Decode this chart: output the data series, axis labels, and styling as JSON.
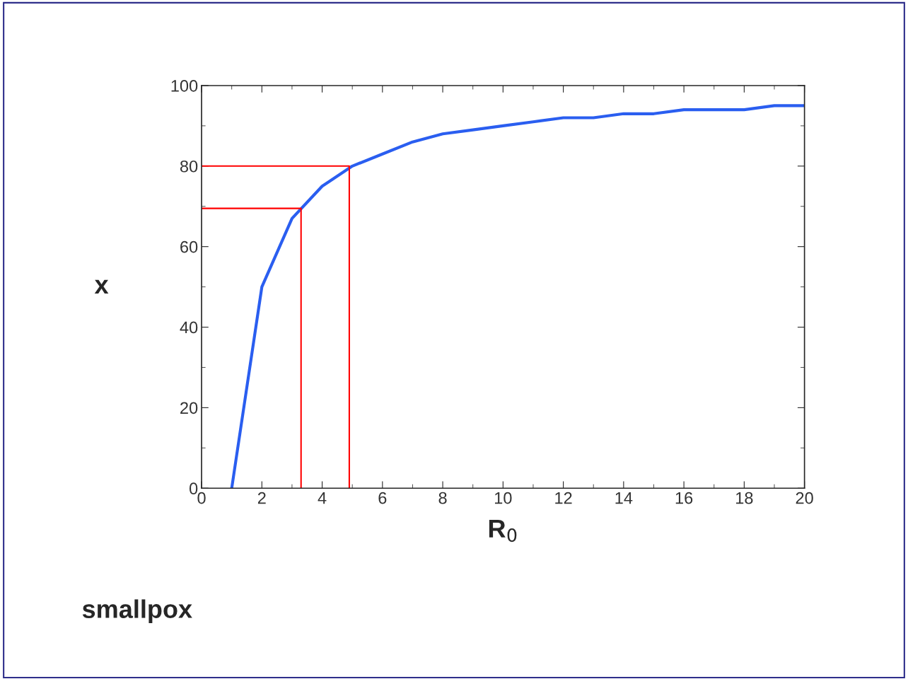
{
  "chart_data": {
    "type": "line",
    "xlabel": "R$_{0}$",
    "ylabel": "x",
    "annotations": [
      "smallpox"
    ],
    "x": [
      1,
      2,
      3,
      4,
      5,
      6,
      7,
      8,
      9,
      10,
      11,
      12,
      13,
      14,
      15,
      16,
      17,
      18,
      19,
      20
    ],
    "series": [
      {
        "color": "#2a5ef0",
        "values": [
          0,
          50,
          67,
          75,
          80,
          83,
          86,
          88,
          89,
          90,
          91,
          92,
          92,
          93,
          93,
          94,
          94,
          94,
          95,
          95
        ]
      },
      {
        "type": "line",
        "color": "#ff0000",
        "x": [
          0,
          3.3,
          3.3
        ],
        "values": [
          69.5,
          69.5,
          0
        ]
      },
      {
        "type": "line",
        "color": "#ff0000",
        "x": [
          0,
          4.9,
          4.9
        ],
        "values": [
          80,
          80,
          0
        ]
      }
    ],
    "xlim": [
      0,
      20
    ],
    "ylim": [
      0,
      100
    ],
    "xticks": [
      0,
      2,
      4,
      6,
      8,
      10,
      12,
      14,
      16,
      18,
      20
    ],
    "yticks": [
      0,
      20,
      40,
      60,
      80,
      100
    ],
    "grid": false,
    "legend": false
  }
}
